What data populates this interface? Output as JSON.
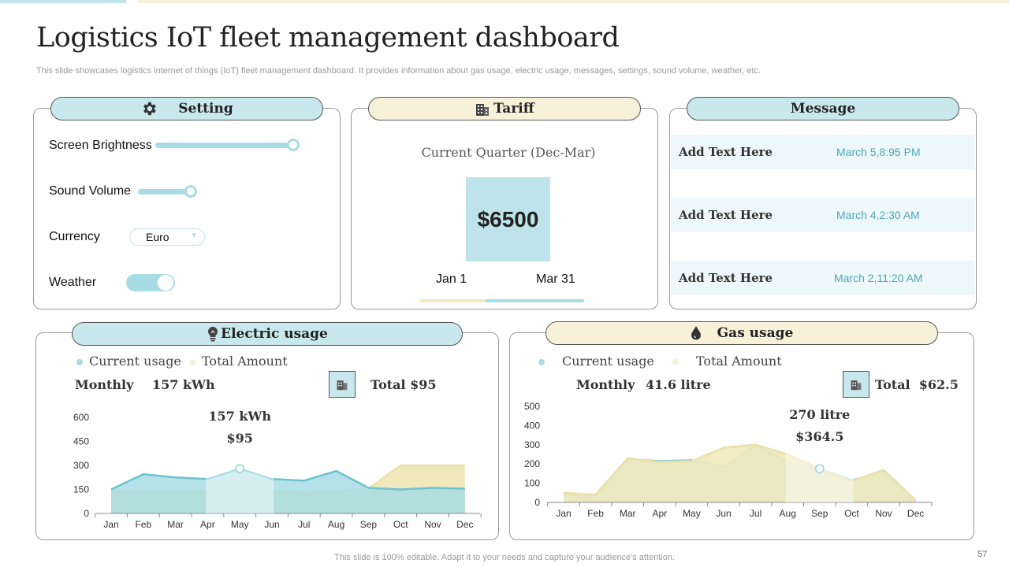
{
  "page": {
    "title": "Logistics IoT fleet management dashboard",
    "subtitle": "This slide showcases logistics internet of things (IoT) fleet management dashboard. It provides information about gas usage, electric usage, messages, settings, sound volume, weather, etc.",
    "footer": "This slide is 100% editable. Adapt it to your needs and capture your audience's attention.",
    "page_number": "57"
  },
  "colors": {
    "accent_blue": "#a8dce4",
    "accent_cream": "#f1e9bd",
    "panel_border": "#9a9a9a",
    "message_date": "#4fa8b6"
  },
  "setting": {
    "title": "Setting",
    "icon": "gear-icon",
    "brightness_label": "Screen Brightness",
    "brightness_level": 1.0,
    "volume_label": "Sound Volume",
    "volume_level": 1.0,
    "currency_label": "Currency",
    "currency_value": "Euro",
    "weather_label": "Weather",
    "weather_on": true
  },
  "tariff": {
    "title": "Tariff",
    "icon": "building-icon",
    "period": "Current Quarter (Dec-Mar)",
    "amount": "$6500",
    "start_date": "Jan 1",
    "end_date": "Mar 31",
    "progress": 0.4
  },
  "message": {
    "title": "Message",
    "items": [
      {
        "text": "Add Text Here",
        "date": "March 5,8:95 PM"
      },
      {
        "text": "Add Text Here",
        "date": "March 4,2:30 AM"
      },
      {
        "text": "Add Text Here",
        "date": "March 2,11:20 AM"
      }
    ]
  },
  "electric": {
    "title": "Electric usage",
    "icon": "bulb-icon",
    "legend_current": "Current usage",
    "legend_total": "Total Amount",
    "monthly_label": "Monthly",
    "monthly_value": "157 kWh",
    "total_label": "Total",
    "total_value": "$95",
    "highlight_value1": "157 kWh",
    "highlight_value2": "$95"
  },
  "gas": {
    "title": "Gas usage",
    "icon": "drop-icon",
    "legend_current": "Current usage",
    "legend_total": "Total Amount",
    "monthly_label": "Monthly",
    "monthly_value": "41.6 litre",
    "total_label": "Total",
    "total_value": "$62.5",
    "highlight_value1": "270 litre",
    "highlight_value2": "$364.5"
  },
  "chart_data": [
    {
      "type": "area",
      "title": "Electric usage",
      "categories": [
        "Jan",
        "Feb",
        "Mar",
        "Apr",
        "May",
        "Jun",
        "Jul",
        "Aug",
        "Sep",
        "Oct",
        "Nov",
        "Dec"
      ],
      "ylim": [
        0,
        600
      ],
      "yticks": [
        0,
        150,
        300,
        450,
        600
      ],
      "highlight_index": 4,
      "series": [
        {
          "name": "Current usage",
          "values": [
            150,
            245,
            225,
            215,
            280,
            215,
            205,
            265,
            160,
            150,
            160,
            155
          ]
        },
        {
          "name": "Total Amount",
          "values": [
            135,
            135,
            140,
            140,
            145,
            140,
            130,
            140,
            155,
            300,
            300,
            300
          ]
        }
      ]
    },
    {
      "type": "area",
      "title": "Gas usage",
      "categories": [
        "Jan",
        "Feb",
        "Mar",
        "Apr",
        "May",
        "Jun",
        "Jul",
        "Aug",
        "Sep",
        "Oct",
        "Nov",
        "Dec"
      ],
      "ylim": [
        0,
        500
      ],
      "yticks": [
        0,
        100,
        200,
        300,
        400,
        500
      ],
      "highlight_index": 8,
      "series": [
        {
          "name": "Current usage",
          "values": [
            40,
            30,
            225,
            215,
            220,
            185,
            300,
            210,
            175,
            115,
            160,
            5
          ]
        },
        {
          "name": "Total Amount",
          "values": [
            50,
            40,
            230,
            210,
            215,
            285,
            300,
            250,
            175,
            110,
            170,
            10
          ]
        }
      ]
    }
  ]
}
